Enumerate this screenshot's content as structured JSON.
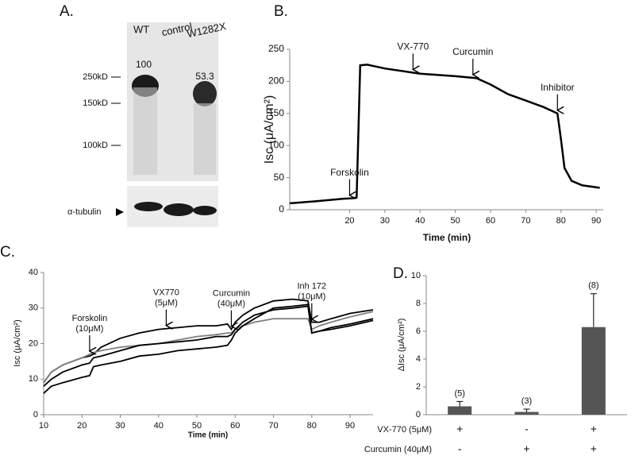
{
  "blot": {
    "label": "A.",
    "lanes": [
      "WT",
      "control",
      "W1282X"
    ],
    "quantification": [
      100,
      53.3
    ],
    "markers": [
      "250kD",
      "150kD",
      "100kD"
    ],
    "loading_control": "α-tubulin"
  },
  "chart_data": [
    {
      "type": "line",
      "label": "B.",
      "ylabel": "Isc (μA/cm²)",
      "xlabel": "Time (min)",
      "x": [
        3,
        10,
        18,
        21,
        22,
        23,
        25,
        30,
        40,
        50,
        56,
        60,
        65,
        70,
        75,
        79,
        80,
        81,
        83,
        86,
        90,
        91
      ],
      "series": [
        {
          "color": "#000000",
          "values": [
            10,
            13,
            17,
            18,
            19,
            225,
            226,
            220,
            212,
            208,
            205,
            195,
            180,
            170,
            160,
            150,
            110,
            65,
            45,
            38,
            35,
            34
          ]
        }
      ],
      "xlim": [
        3,
        92
      ],
      "xticks": [
        20,
        30,
        40,
        50,
        60,
        70,
        80,
        90
      ],
      "ylim": [
        0,
        250
      ],
      "yticks": [
        0,
        50,
        100,
        150,
        200,
        250
      ],
      "annotations": [
        {
          "text": [
            "Forskolin"
          ],
          "x": 20
        },
        {
          "text": [
            "VX-770"
          ],
          "x": 38
        },
        {
          "text": [
            "Curcumin"
          ],
          "x": 55
        },
        {
          "text": [
            "Inhibitor"
          ],
          "x": 79
        }
      ]
    },
    {
      "type": "line",
      "label": "C.",
      "ylabel": "Isc (μA/cm²)",
      "xlabel": "Time (min)",
      "x": [
        10,
        12,
        15,
        20,
        22,
        23,
        25,
        30,
        35,
        40,
        45,
        50,
        55,
        58,
        59,
        60,
        62,
        65,
        70,
        75,
        79,
        80,
        82,
        85,
        90,
        96
      ],
      "series": [
        {
          "color": "#000000",
          "values": [
            9,
            12,
            14,
            16,
            16.5,
            17,
            19,
            21.5,
            23,
            24,
            24.5,
            25,
            25,
            25.5,
            24,
            26,
            28,
            30,
            32,
            32.5,
            32,
            26,
            26,
            27,
            28.5,
            29.5
          ]
        },
        {
          "color": "#808080",
          "values": [
            9,
            12,
            14,
            16,
            17,
            17.5,
            18,
            19,
            19.5,
            20,
            21,
            22,
            22.5,
            23,
            23,
            24,
            25,
            26,
            27,
            27,
            27,
            24,
            25,
            26,
            27.5,
            29
          ]
        },
        {
          "color": "#000000",
          "values": [
            8,
            10,
            12,
            14,
            14.5,
            16,
            16.5,
            18,
            19.5,
            20,
            20.5,
            21,
            22,
            22,
            22.5,
            24,
            26,
            28,
            29.5,
            30,
            30.5,
            23,
            23.5,
            24.5,
            25.5,
            27
          ]
        },
        {
          "color": "#000000",
          "values": [
            6,
            8,
            9,
            10.5,
            11,
            13.5,
            14,
            15,
            16.5,
            17,
            18,
            18.5,
            19,
            19.5,
            21,
            23,
            25,
            27,
            30,
            30.5,
            31,
            23,
            23.5,
            24,
            25,
            26.5
          ]
        }
      ],
      "xlim": [
        10,
        96
      ],
      "xticks": [
        10,
        20,
        30,
        40,
        50,
        60,
        70,
        80,
        90
      ],
      "ylim": [
        0,
        40
      ],
      "yticks": [
        0,
        10,
        20,
        30,
        40
      ],
      "annotations": [
        {
          "text": [
            "Forskolin",
            "(10μM)"
          ],
          "x": 22
        },
        {
          "text": [
            "VX770",
            "(5μM)"
          ],
          "x": 42
        },
        {
          "text": [
            "Curcumin",
            "(40μM)"
          ],
          "x": 59
        },
        {
          "text": [
            "Inh 172",
            "(10μM)"
          ],
          "x": 80
        }
      ]
    },
    {
      "type": "bar",
      "label": "D.",
      "ylabel": "ΔIsc (μA/cm²)",
      "color": "#555555",
      "values": [
        0.6,
        0.2,
        6.3
      ],
      "errors": [
        0.35,
        0.2,
        2.4
      ],
      "n_labels": [
        "(5)",
        "(3)",
        "(8)"
      ],
      "conditions": [
        {
          "name": "VX-770 (5μM)",
          "values": [
            "+",
            "-",
            "+"
          ]
        },
        {
          "name": "Curcumin (40μM)",
          "values": [
            "-",
            "+",
            "+"
          ]
        }
      ],
      "ylim": [
        0,
        10
      ],
      "yticks": [
        0,
        2,
        4,
        6,
        8,
        10
      ]
    }
  ]
}
